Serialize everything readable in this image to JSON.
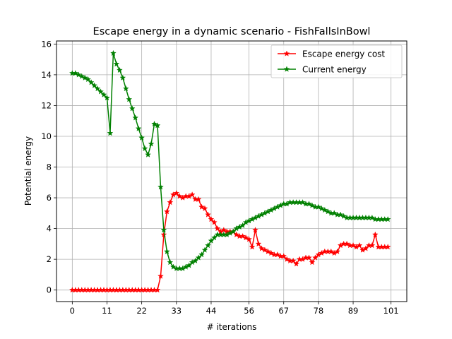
{
  "chart_data": {
    "type": "line",
    "title": "Escape energy in a dynamic scenario - FishFallsInBowl",
    "xlabel": "# iterations",
    "ylabel": "Potential energy",
    "xlim": [
      -5,
      106
    ],
    "ylim": [
      -0.75,
      16.2
    ],
    "xticks": [
      0,
      11,
      22,
      33,
      44,
      56,
      67,
      78,
      89,
      101
    ],
    "yticks": [
      0,
      2,
      4,
      6,
      8,
      10,
      12,
      14,
      16
    ],
    "grid": true,
    "legend_position": "top-right",
    "x": [
      0,
      1,
      2,
      3,
      4,
      5,
      6,
      7,
      8,
      9,
      10,
      11,
      12,
      13,
      14,
      15,
      16,
      17,
      18,
      19,
      20,
      21,
      22,
      23,
      24,
      25,
      26,
      27,
      28,
      29,
      30,
      31,
      32,
      33,
      34,
      35,
      36,
      37,
      38,
      39,
      40,
      41,
      42,
      43,
      44,
      45,
      46,
      47,
      48,
      49,
      50,
      51,
      52,
      53,
      54,
      55,
      56,
      57,
      58,
      59,
      60,
      61,
      62,
      63,
      64,
      65,
      66,
      67,
      68,
      69,
      70,
      71,
      72,
      73,
      74,
      75,
      76,
      77,
      78,
      79,
      80,
      81,
      82,
      83,
      84,
      85,
      86,
      87,
      88,
      89,
      90,
      91,
      92,
      93,
      94,
      95,
      96,
      97,
      98,
      99,
      100
    ],
    "series": [
      {
        "name": "Escape energy cost",
        "color": "#ff0000",
        "values": [
          0,
          0,
          0,
          0,
          0,
          0,
          0,
          0,
          0,
          0,
          0,
          0,
          0,
          0,
          0,
          0,
          0,
          0,
          0,
          0,
          0,
          0,
          0,
          0,
          0,
          0,
          0,
          0,
          0.9,
          3.6,
          5.1,
          5.7,
          6.2,
          6.3,
          6.1,
          6.0,
          6.1,
          6.1,
          6.2,
          5.9,
          5.9,
          5.4,
          5.3,
          4.9,
          4.6,
          4.4,
          4.0,
          3.8,
          3.9,
          3.8,
          3.8,
          3.8,
          3.6,
          3.5,
          3.5,
          3.4,
          3.3,
          2.8,
          3.9,
          3.0,
          2.7,
          2.6,
          2.5,
          2.4,
          2.3,
          2.3,
          2.2,
          2.2,
          2.0,
          1.9,
          1.9,
          1.7,
          2.0,
          2.0,
          2.1,
          2.1,
          1.8,
          2.1,
          2.3,
          2.4,
          2.5,
          2.5,
          2.5,
          2.4,
          2.5,
          2.9,
          3.0,
          3.0,
          2.9,
          2.9,
          2.8,
          2.9,
          2.6,
          2.7,
          2.9,
          2.9,
          3.6,
          2.8,
          2.8,
          2.8,
          2.8
        ]
      },
      {
        "name": "Current energy",
        "color": "#008000",
        "values": [
          14.1,
          14.1,
          14.0,
          13.9,
          13.8,
          13.7,
          13.5,
          13.3,
          13.1,
          12.9,
          12.7,
          12.5,
          10.2,
          15.4,
          14.7,
          14.3,
          13.8,
          13.1,
          12.4,
          11.8,
          11.2,
          10.5,
          9.9,
          9.2,
          8.8,
          9.5,
          10.8,
          10.7,
          6.7,
          3.9,
          2.5,
          1.8,
          1.5,
          1.4,
          1.4,
          1.4,
          1.5,
          1.6,
          1.8,
          1.9,
          2.1,
          2.3,
          2.6,
          2.9,
          3.2,
          3.4,
          3.6,
          3.6,
          3.6,
          3.6,
          3.7,
          3.8,
          4.0,
          4.1,
          4.2,
          4.4,
          4.5,
          4.6,
          4.7,
          4.8,
          4.9,
          5.0,
          5.1,
          5.2,
          5.3,
          5.4,
          5.5,
          5.6,
          5.6,
          5.7,
          5.7,
          5.7,
          5.7,
          5.7,
          5.6,
          5.6,
          5.5,
          5.4,
          5.4,
          5.3,
          5.2,
          5.1,
          5.0,
          5.0,
          4.9,
          4.9,
          4.8,
          4.7,
          4.7,
          4.7,
          4.7,
          4.7,
          4.7,
          4.7,
          4.7,
          4.7,
          4.6,
          4.6,
          4.6,
          4.6,
          4.6
        ]
      }
    ]
  }
}
